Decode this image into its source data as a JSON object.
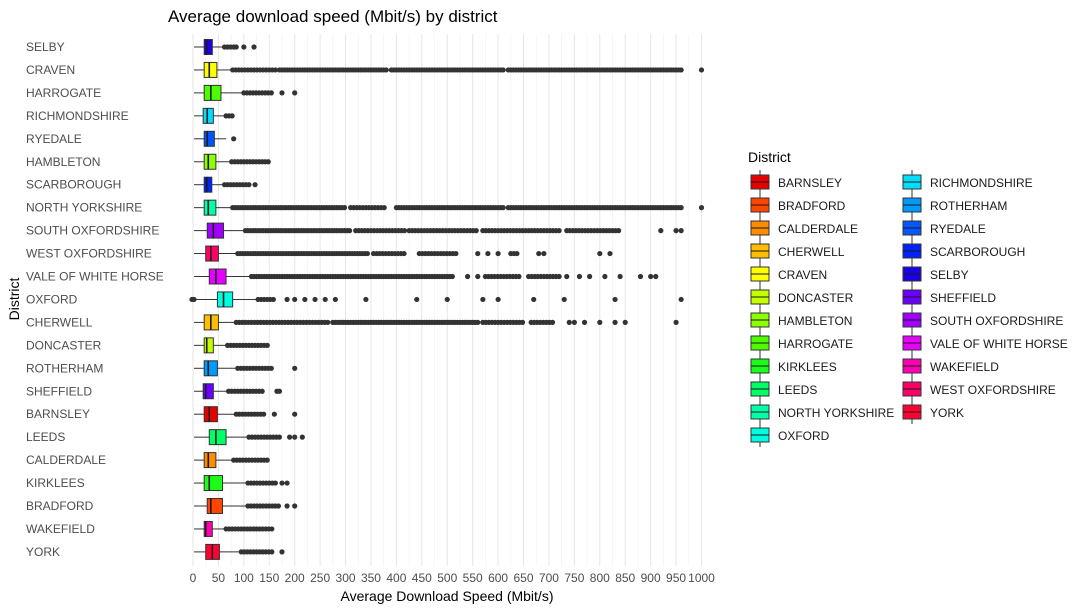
{
  "chart_data": {
    "type": "boxplot",
    "orientation": "horizontal",
    "title": "Average download speed (Mbit/s) by district",
    "xlabel": "Average Download Speed (Mbit/s)",
    "ylabel": "District",
    "xlim": [
      -5,
      1010
    ],
    "xticks": [
      0,
      50,
      100,
      150,
      200,
      250,
      300,
      350,
      400,
      450,
      500,
      550,
      600,
      650,
      700,
      750,
      800,
      850,
      900,
      950,
      1000
    ],
    "grid": true,
    "legend": {
      "title": "District",
      "position": "right",
      "columns": 2,
      "entries": [
        {
          "name": "BARNSLEY",
          "color": "#E60000"
        },
        {
          "name": "BRADFORD",
          "color": "#FF4500"
        },
        {
          "name": "CALDERDALE",
          "color": "#FF8C00"
        },
        {
          "name": "CHERWELL",
          "color": "#FFBF00"
        },
        {
          "name": "CRAVEN",
          "color": "#FFFF00"
        },
        {
          "name": "DONCASTER",
          "color": "#C6FF00"
        },
        {
          "name": "HAMBLETON",
          "color": "#8CFF00"
        },
        {
          "name": "HARROGATE",
          "color": "#4CFF00"
        },
        {
          "name": "KIRKLEES",
          "color": "#1AFF1A"
        },
        {
          "name": "LEEDS",
          "color": "#00FF66"
        },
        {
          "name": "NORTH YORKSHIRE",
          "color": "#00FFA8"
        },
        {
          "name": "OXFORD",
          "color": "#00FFE0"
        },
        {
          "name": "RICHMONDSHIRE",
          "color": "#00DDFF"
        },
        {
          "name": "ROTHERHAM",
          "color": "#0099FF"
        },
        {
          "name": "RYEDALE",
          "color": "#0055FF"
        },
        {
          "name": "SCARBOROUGH",
          "color": "#0022FF"
        },
        {
          "name": "SELBY",
          "color": "#1A00E6"
        },
        {
          "name": "SHEFFIELD",
          "color": "#6A00FF"
        },
        {
          "name": "SOUTH OXFORDSHIRE",
          "color": "#A000FF"
        },
        {
          "name": "VALE OF WHITE HORSE",
          "color": "#E600FF"
        },
        {
          "name": "WAKEFIELD",
          "color": "#FF00B3"
        },
        {
          "name": "WEST OXFORDSHIRE",
          "color": "#FF0066"
        },
        {
          "name": "YORK",
          "color": "#FF0033"
        }
      ]
    },
    "categories": [
      "SELBY",
      "CRAVEN",
      "HARROGATE",
      "RICHMONDSHIRE",
      "RYEDALE",
      "HAMBLETON",
      "SCARBOROUGH",
      "NORTH YORKSHIRE",
      "SOUTH OXFORDSHIRE",
      "WEST OXFORDSHIRE",
      "VALE OF WHITE HORSE",
      "OXFORD",
      "CHERWELL",
      "DONCASTER",
      "ROTHERHAM",
      "SHEFFIELD",
      "BARNSLEY",
      "LEEDS",
      "CALDERDALE",
      "KIRKLEES",
      "BRADFORD",
      "WAKEFIELD",
      "YORK"
    ],
    "boxes": [
      {
        "district": "SELBY",
        "whisker_low": 2,
        "q1": 22,
        "median": 27,
        "q3": 38,
        "whisker_high": 60,
        "outliers": [
          [
            62,
            80
          ],
          85,
          100,
          120
        ]
      },
      {
        "district": "CRAVEN",
        "whisker_low": 2,
        "q1": 22,
        "median": 32,
        "q3": 47,
        "whisker_high": 75,
        "outliers": [
          [
            78,
            165
          ],
          [
            170,
            380
          ],
          [
            390,
            610
          ],
          [
            620,
            960
          ],
          1000
        ]
      },
      {
        "district": "HARROGATE",
        "whisker_low": 2,
        "q1": 22,
        "median": 35,
        "q3": 55,
        "whisker_high": 98,
        "outliers": [
          [
            100,
            155
          ],
          175,
          200
        ]
      },
      {
        "district": "RICHMONDSHIRE",
        "whisker_low": 2,
        "q1": 20,
        "median": 28,
        "q3": 40,
        "whisker_high": 62,
        "outliers": [
          [
            65,
            80
          ]
        ]
      },
      {
        "district": "RYEDALE",
        "whisker_low": 2,
        "q1": 22,
        "median": 28,
        "q3": 42,
        "whisker_high": 65,
        "outliers": [
          80
        ]
      },
      {
        "district": "HAMBLETON",
        "whisker_low": 2,
        "q1": 22,
        "median": 30,
        "q3": 45,
        "whisker_high": 73,
        "outliers": [
          [
            76,
            150
          ]
        ]
      },
      {
        "district": "SCARBOROUGH",
        "whisker_low": 2,
        "q1": 22,
        "median": 27,
        "q3": 37,
        "whisker_high": 60,
        "outliers": [
          [
            62,
            110
          ],
          122
        ]
      },
      {
        "district": "NORTH YORKSHIRE",
        "whisker_low": 2,
        "q1": 22,
        "median": 30,
        "q3": 45,
        "whisker_high": 75,
        "outliers": [
          [
            78,
            300
          ],
          [
            310,
            380
          ],
          [
            400,
            610
          ],
          [
            620,
            960
          ],
          1000
        ]
      },
      {
        "district": "SOUTH OXFORDSHIRE",
        "whisker_low": 2,
        "q1": 28,
        "median": 40,
        "q3": 60,
        "whisker_high": 100,
        "outliers": [
          [
            103,
            310
          ],
          [
            320,
            420
          ],
          [
            425,
            560
          ],
          [
            570,
            720
          ],
          [
            735,
            840
          ],
          920,
          950,
          960
        ]
      },
      {
        "district": "WEST OXFORDSHIRE",
        "whisker_low": 2,
        "q1": 25,
        "median": 35,
        "q3": 50,
        "whisker_high": 85,
        "outliers": [
          [
            88,
            345
          ],
          [
            355,
            420
          ],
          [
            445,
            520
          ],
          560,
          580,
          600,
          [
            625,
            640
          ],
          680,
          690,
          800,
          820
        ]
      },
      {
        "district": "VALE OF WHITE HORSE",
        "whisker_low": 2,
        "q1": 32,
        "median": 45,
        "q3": 65,
        "whisker_high": 112,
        "outliers": [
          [
            115,
            510
          ],
          540,
          560,
          [
            575,
            645
          ],
          [
            660,
            720
          ],
          735,
          760,
          780,
          810,
          840,
          880,
          900,
          910
        ]
      },
      {
        "district": "OXFORD",
        "whisker_low": 2,
        "q1": 48,
        "median": 60,
        "q3": 78,
        "whisker_high": 125,
        "outliers": [
          -2,
          0,
          2,
          [
            128,
            160
          ],
          185,
          200,
          220,
          240,
          260,
          280,
          340,
          440,
          500,
          570,
          600,
          670,
          730,
          830,
          960
        ]
      },
      {
        "district": "CHERWELL",
        "whisker_low": 2,
        "q1": 22,
        "median": 35,
        "q3": 50,
        "whisker_high": 82,
        "outliers": [
          [
            85,
            270
          ],
          [
            275,
            560
          ],
          [
            570,
            650
          ],
          [
            665,
            710
          ],
          740,
          750,
          770,
          800,
          830,
          850,
          950
        ]
      },
      {
        "district": "DONCASTER",
        "whisker_low": 2,
        "q1": 22,
        "median": 27,
        "q3": 40,
        "whisker_high": 65,
        "outliers": [
          [
            68,
            150
          ]
        ]
      },
      {
        "district": "ROTHERHAM",
        "whisker_low": 2,
        "q1": 22,
        "median": 30,
        "q3": 48,
        "whisker_high": 85,
        "outliers": [
          [
            88,
            155
          ],
          200
        ]
      },
      {
        "district": "SHEFFIELD",
        "whisker_low": 2,
        "q1": 20,
        "median": 25,
        "q3": 40,
        "whisker_high": 68,
        "outliers": [
          [
            70,
            140
          ],
          165,
          170
        ]
      },
      {
        "district": "BARNSLEY",
        "whisker_low": 2,
        "q1": 22,
        "median": 32,
        "q3": 48,
        "whisker_high": 82,
        "outliers": [
          [
            85,
            140
          ],
          160,
          200
        ]
      },
      {
        "district": "LEEDS",
        "whisker_low": 2,
        "q1": 32,
        "median": 45,
        "q3": 65,
        "whisker_high": 108,
        "outliers": [
          [
            110,
            175
          ],
          190,
          200,
          215
        ]
      },
      {
        "district": "CALDERDALE",
        "whisker_low": 2,
        "q1": 22,
        "median": 30,
        "q3": 45,
        "whisker_high": 78,
        "outliers": [
          [
            80,
            150
          ]
        ]
      },
      {
        "district": "KIRKLEES",
        "whisker_low": 2,
        "q1": 22,
        "median": 32,
        "q3": 58,
        "whisker_high": 105,
        "outliers": [
          [
            108,
            165
          ],
          175,
          185
        ]
      },
      {
        "district": "BRADFORD",
        "whisker_low": 2,
        "q1": 28,
        "median": 35,
        "q3": 58,
        "whisker_high": 105,
        "outliers": [
          [
            108,
            170
          ],
          185,
          200
        ]
      },
      {
        "district": "WAKEFIELD",
        "whisker_low": 2,
        "q1": 22,
        "median": 25,
        "q3": 38,
        "whisker_high": 62,
        "outliers": [
          [
            65,
            160
          ]
        ]
      },
      {
        "district": "YORK",
        "whisker_low": 2,
        "q1": 25,
        "median": 38,
        "q3": 52,
        "whisker_high": 92,
        "outliers": [
          [
            95,
            160
          ],
          175
        ]
      }
    ]
  }
}
